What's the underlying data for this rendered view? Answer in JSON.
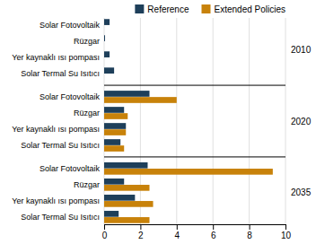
{
  "chart_data": {
    "type": "bar",
    "orientation": "horizontal",
    "categories": [
      "Solar Fotovoltaik",
      "Rüzgar",
      "Yer kaynaklı ısı pompası",
      "Solar Termal Su Isıtıcı",
      "Solar Fotovoltaik",
      "Rüzgar",
      "Yer kaynaklı ısı pompası",
      "Solar Termal Su Isıtıcı",
      "Solar Fotovoltaik",
      "Rüzgar",
      "Yer kaynaklı ısı pompası",
      "Solar Termal Su Isıtıcı"
    ],
    "annotations": [
      "2010",
      "2020",
      "2035"
    ],
    "series": [
      {
        "name": "Reference",
        "color": "#1e3f5a",
        "values": [
          0.3,
          0.05,
          0.3,
          0.55,
          2.5,
          1.1,
          1.2,
          0.9,
          2.4,
          1.1,
          1.7,
          0.8
        ]
      },
      {
        "name": "Extended Policies",
        "color": "#c8820a",
        "values": [
          0.0,
          0.0,
          0.0,
          0.0,
          4.0,
          1.3,
          1.2,
          1.1,
          9.3,
          2.5,
          2.7,
          2.5
        ]
      }
    ],
    "xlim": [
      0,
      10
    ],
    "xticks": [
      0,
      2,
      4,
      6,
      8,
      10
    ],
    "grid": true,
    "legend": "top"
  }
}
